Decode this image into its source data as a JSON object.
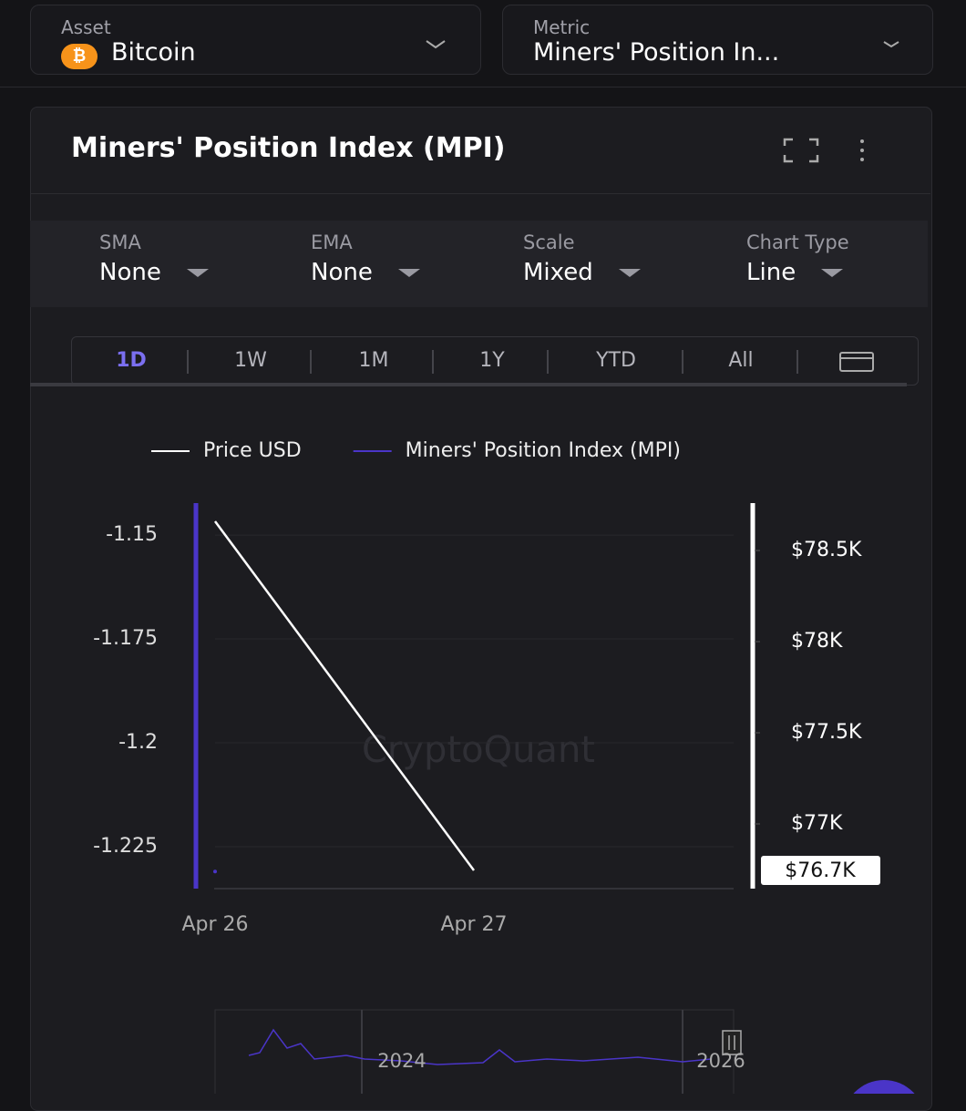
{
  "asset_selector": {
    "label": "Asset",
    "value": "Bitcoin"
  },
  "metric_selector": {
    "label": "Metric",
    "value": "Miners' Position In..."
  },
  "card": {
    "title": "Miners' Position Index (MPI)"
  },
  "controls": [
    {
      "label": "SMA",
      "value": "None"
    },
    {
      "label": "EMA",
      "value": "None"
    },
    {
      "label": "Scale",
      "value": "Mixed"
    },
    {
      "label": "Chart Type",
      "value": "Line"
    }
  ],
  "ranges": [
    "1D",
    "1W",
    "1M",
    "1Y",
    "YTD",
    "All"
  ],
  "chart_data": {
    "type": "line",
    "watermark": "CryptoQuant",
    "categories": [
      "Apr 26",
      "Apr 27"
    ],
    "series": [
      {
        "name": "Price USD",
        "color": "#ffffff",
        "axis": "y2",
        "values": [
          78660,
          76745
        ],
        "value_labels": [
          null,
          "$76.7K"
        ]
      },
      {
        "name": "Miners' Position Index (MPI)",
        "color": "#4a35c8",
        "values": [
          -1.231,
          null
        ]
      }
    ],
    "ylim": [
      -1.2351,
      -1.1423
    ],
    "yticks": [
      -1.15,
      -1.175,
      -1.2,
      -1.225
    ],
    "y2lim": [
      76645,
      78760
    ],
    "y2ticks": [
      {
        "value": 78500,
        "label": "$78.5K"
      },
      {
        "value": 78000,
        "label": "$78K"
      },
      {
        "value": 77500,
        "label": "$77.5K"
      },
      {
        "value": 77000,
        "label": "$77K"
      }
    ],
    "grid": true
  },
  "navigator": {
    "labels": [
      "2024",
      "2026"
    ]
  }
}
